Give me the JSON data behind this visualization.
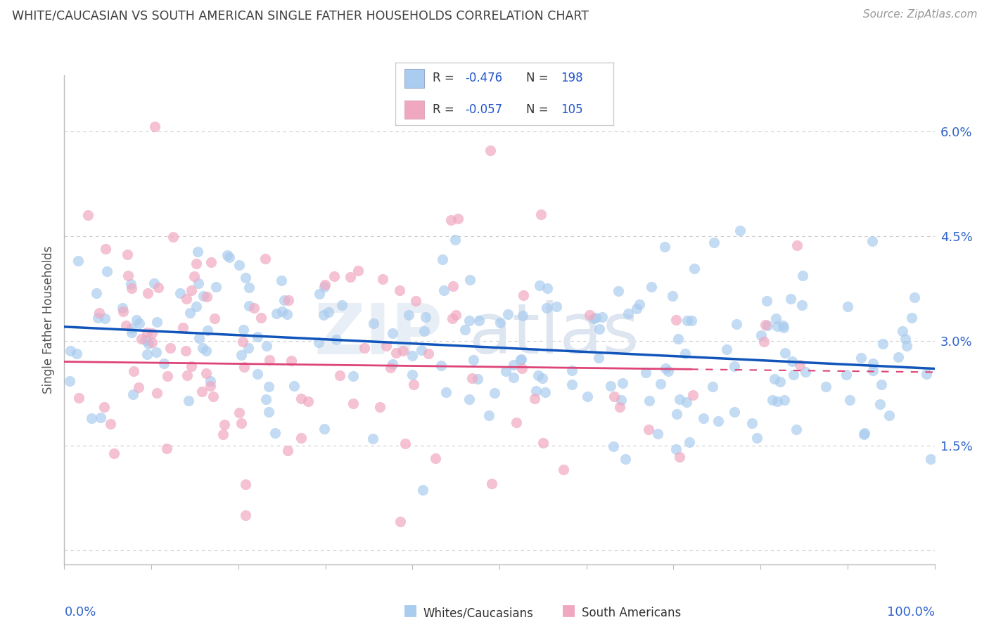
{
  "title": "WHITE/CAUCASIAN VS SOUTH AMERICAN SINGLE FATHER HOUSEHOLDS CORRELATION CHART",
  "source": "Source: ZipAtlas.com",
  "ylabel": "Single Father Households",
  "y_ticks": [
    0.0,
    0.015,
    0.03,
    0.045,
    0.06
  ],
  "y_tick_labels": [
    "",
    "1.5%",
    "3.0%",
    "4.5%",
    "6.0%"
  ],
  "x_range": [
    0,
    1
  ],
  "y_range": [
    -0.002,
    0.068
  ],
  "blue_dot_color": "#aaccee",
  "pink_dot_color": "#f0a8c0",
  "blue_line_color": "#1155bb",
  "pink_line_color": "#dd4477",
  "blue_legend_color": "#aaccee",
  "pink_legend_color": "#f0a8c0",
  "legend_r1": "-0.476",
  "legend_n1": "198",
  "legend_r2": "-0.057",
  "legend_n2": "105",
  "blue_R": -0.476,
  "blue_N": 198,
  "pink_R": -0.057,
  "pink_N": 105,
  "blue_intercept": 0.032,
  "blue_slope": -0.006,
  "pink_intercept": 0.027,
  "pink_slope": -0.0015,
  "background_color": "#ffffff",
  "grid_color": "#cccccc",
  "title_color": "#404040",
  "value_color": "#2255cc",
  "source_color": "#999999",
  "label_color": "#555555",
  "tick_color": "#3366cc",
  "watermark_zip_color": "#e8eef5",
  "watermark_atlas_color": "#dde6f0"
}
